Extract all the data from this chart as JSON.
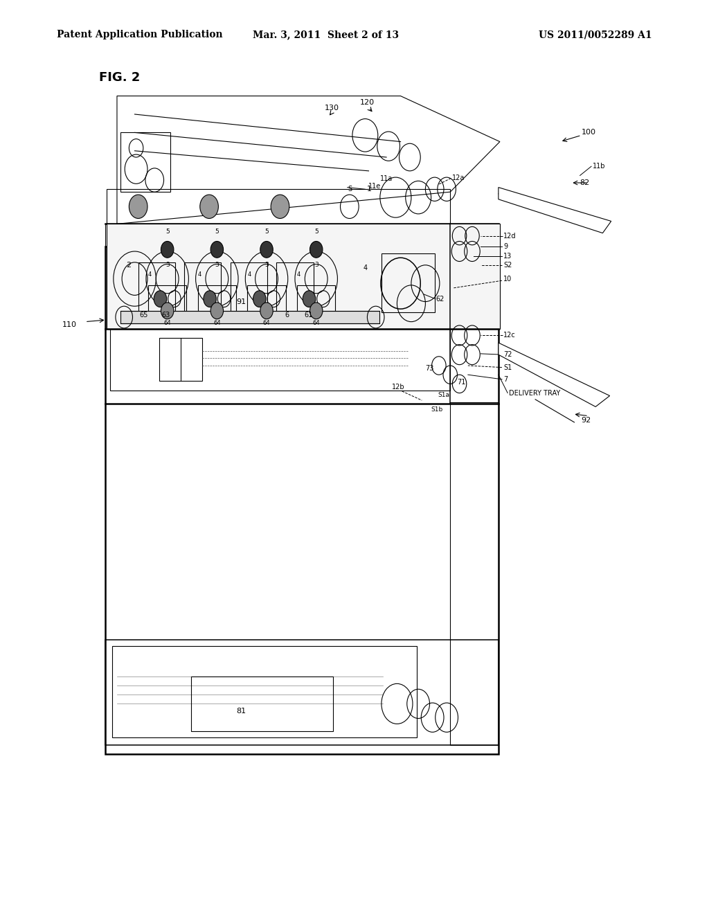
{
  "background_color": "#ffffff",
  "header_left": "Patent Application Publication",
  "header_center": "Mar. 3, 2011  Sheet 2 of 13",
  "header_right": "US 2011/0052289 A1",
  "figure_label": "FIG. 2"
}
